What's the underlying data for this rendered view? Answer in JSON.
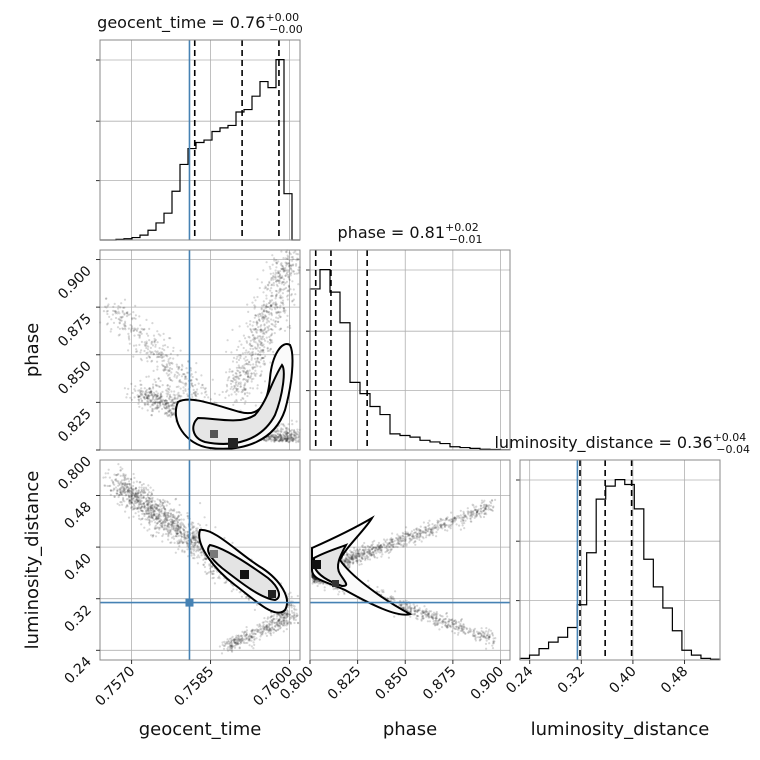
{
  "chart_data": {
    "type": "corner",
    "parameters": [
      {
        "name": "geocent_time",
        "range": [
          1.7564,
          1.7602
        ],
        "truth": 1.7581,
        "quantiles": [
          1.7582,
          1.7591,
          1.7598
        ],
        "title_main": "geocent_time = 0.76",
        "title_sup": "+0.00",
        "title_sub": "−0.00",
        "ticks": [
          1.757,
          1.7585,
          1.76
        ],
        "tick_labels": [
          "0.7570",
          "0.7585",
          "0.7600"
        ]
      },
      {
        "name": "phase",
        "range": [
          0.8,
          0.905
        ],
        "truth": null,
        "quantiles": [
          0.803,
          0.811,
          0.83
        ],
        "title_main": "phase = 0.81",
        "title_sup": "+0.02",
        "title_sub": "−0.01",
        "ticks": [
          0.8,
          0.825,
          0.85,
          0.875,
          0.9
        ],
        "tick_labels": [
          "0.800",
          "0.825",
          "0.850",
          "0.875",
          "0.900"
        ]
      },
      {
        "name": "luminosity_distance",
        "range": [
          0.225,
          0.535
        ],
        "truth": 0.314,
        "quantiles": [
          0.318,
          0.357,
          0.398
        ],
        "title_main": "luminosity_distance = 0.36",
        "title_sup": "+0.04",
        "title_sub": "−0.04",
        "ticks": [
          0.24,
          0.32,
          0.4,
          0.48
        ],
        "tick_labels": [
          "0.24",
          "0.32",
          "0.40",
          "0.48"
        ]
      }
    ],
    "histograms": [
      {
        "param": "geocent_time",
        "values": [
          0,
          0,
          0.5,
          1,
          2,
          4,
          8,
          14,
          22,
          40,
          62,
          75,
          80,
          82,
          89,
          92,
          94,
          105,
          107,
          118,
          130,
          125,
          148,
          38,
          0
        ]
      },
      {
        "param": "phase",
        "values": [
          100,
          112,
          98,
          79,
          42,
          35,
          27,
          22,
          10,
          9,
          8,
          6,
          5,
          4,
          2,
          1.5,
          1,
          0.5,
          0.3,
          0.1
        ]
      },
      {
        "param": "luminosity_distance",
        "values": [
          1,
          3,
          7,
          11,
          14,
          20,
          34,
          66,
          99,
          107,
          111,
          108,
          93,
          62,
          45,
          32,
          18,
          6,
          3,
          1,
          0.5
        ]
      }
    ],
    "grid": true,
    "truth_color": "#4682b4",
    "contour_color": "#000000"
  }
}
